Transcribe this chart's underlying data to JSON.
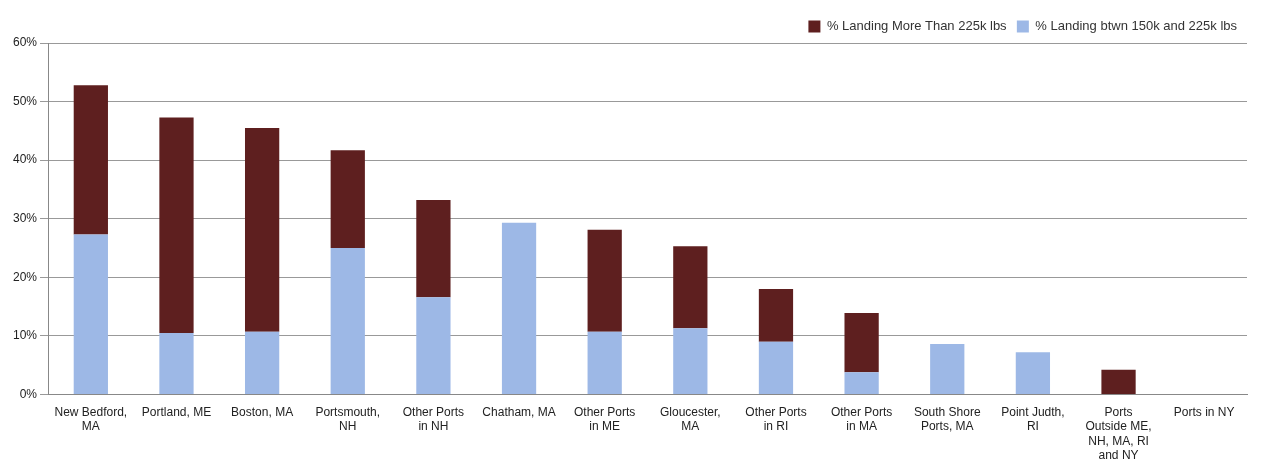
{
  "chart_data": {
    "type": "bar",
    "stacked": true,
    "categories": [
      "New Bedford, MA",
      "Portland, ME",
      "Boston, MA",
      "Portsmouth, NH",
      "Other Ports in NH",
      "Chatham, MA",
      "Other Ports in ME",
      "Gloucester, MA",
      "Other Ports in RI",
      "Other Ports in MA",
      "South Shore Ports, MA",
      "Point Judth, RI",
      "Ports Outside ME, NH, MA, RI and NY",
      "Ports in NY"
    ],
    "series": [
      {
        "name": "% Landing btwn 150k and 225k lbs",
        "color": "#9db8e6",
        "values": [
          27.3,
          10.5,
          10.7,
          25,
          16.6,
          29.3,
          10.7,
          11.3,
          9,
          3.8,
          8.6,
          7.2,
          0,
          0
        ]
      },
      {
        "name": "% Landing More Than 225k lbs",
        "color": "#5e1f1f",
        "values": [
          25.5,
          36.8,
          34.8,
          16.7,
          16.6,
          0,
          17.4,
          14,
          9,
          10.1,
          0,
          0,
          4.2,
          0
        ]
      }
    ],
    "ylim": [
      0,
      60
    ],
    "yticks": [
      {
        "value": 0,
        "label": "0%"
      },
      {
        "value": 10,
        "label": "10%"
      },
      {
        "value": 20,
        "label": "20%"
      },
      {
        "value": 30,
        "label": "30%"
      },
      {
        "value": 40,
        "label": "40%"
      },
      {
        "value": 50,
        "label": "50%"
      },
      {
        "value": 60,
        "label": "60%"
      }
    ],
    "grid": "y",
    "legend": "top right"
  }
}
